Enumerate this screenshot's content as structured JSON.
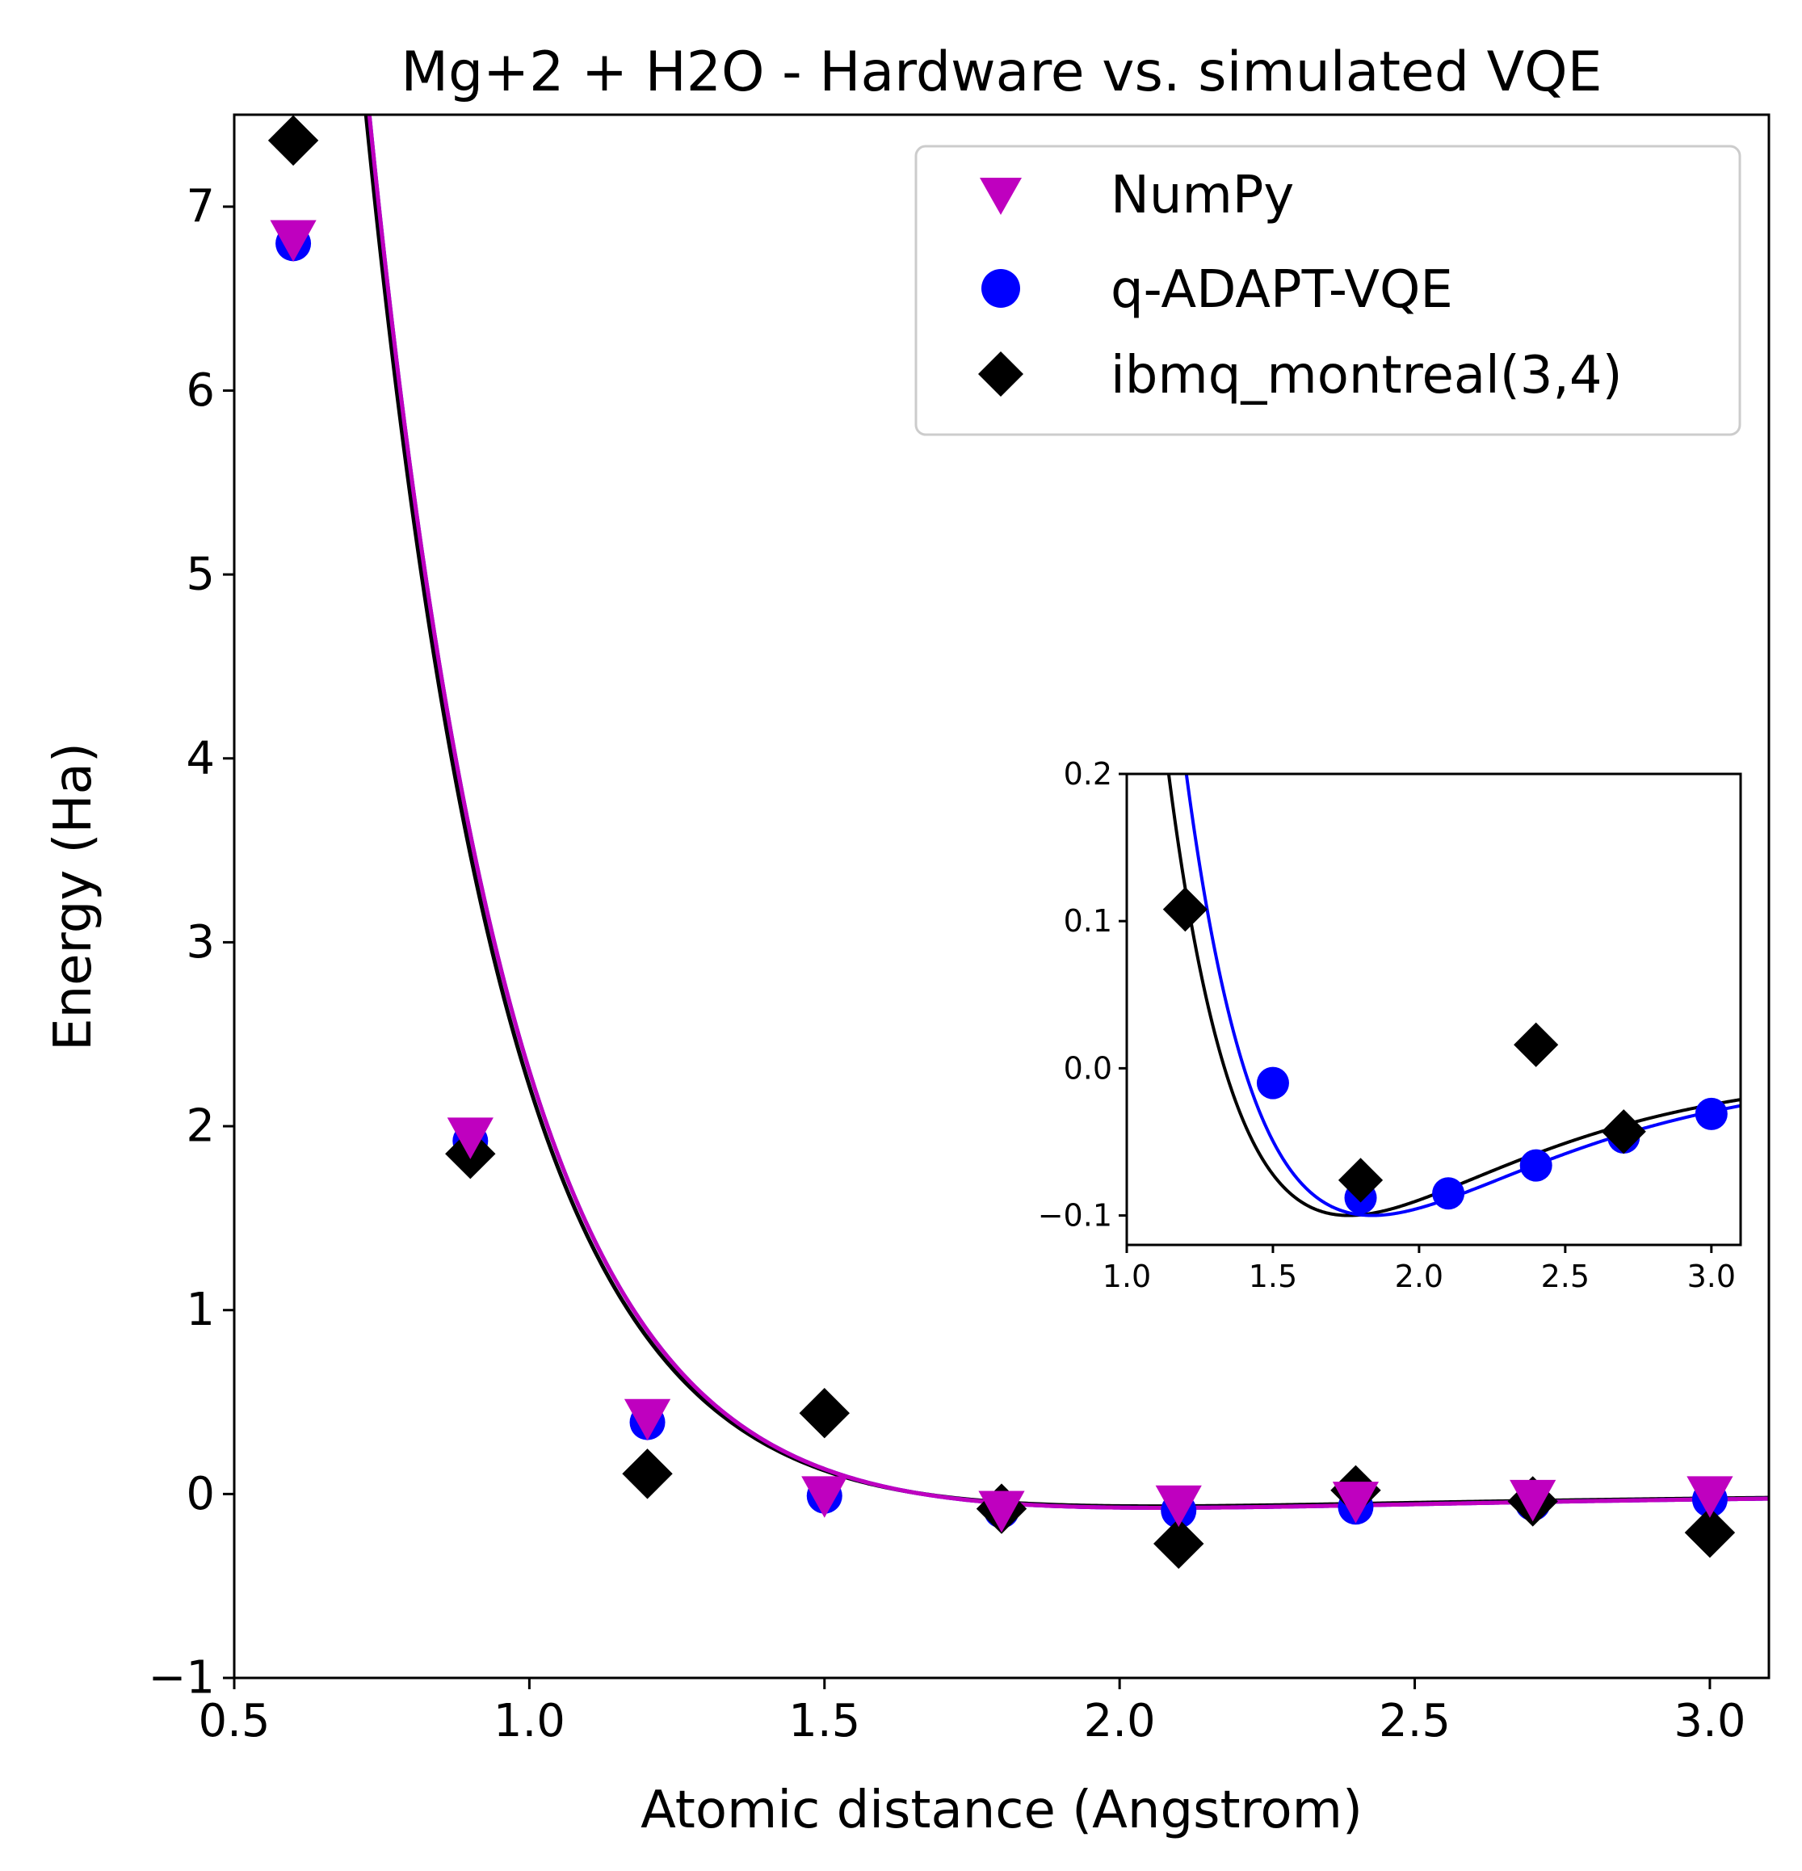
{
  "chart_data": [
    {
      "type": "line",
      "title": "Mg+2 + H2O - Hardware vs. simulated VQE",
      "xlabel": "Atomic distance (Angstrom)",
      "ylabel": "Energy (Ha)",
      "xlim": [
        0.5,
        3.1
      ],
      "ylim": [
        -1.0,
        7.5
      ],
      "xticks": [
        "0.5",
        "1.0",
        "1.5",
        "2.0",
        "2.5",
        "3.0"
      ],
      "yticks": [
        "−1",
        "0",
        "1",
        "2",
        "3",
        "4",
        "5",
        "6",
        "7"
      ],
      "legend_position": "top-right",
      "series": [
        {
          "name": "NumPy",
          "marker": "triangle-down",
          "color": "#bf00bf",
          "x": [
            0.6,
            0.9,
            1.2,
            1.5,
            1.8,
            2.1,
            2.4,
            2.7,
            3.0
          ],
          "y": [
            6.82,
            1.94,
            0.41,
            -0.01,
            -0.09,
            -0.06,
            -0.04,
            -0.03,
            -0.01
          ]
        },
        {
          "name": "q-ADAPT-VQE",
          "marker": "circle",
          "color": "#0000ff",
          "x": [
            0.6,
            0.9,
            1.2,
            1.5,
            1.8,
            2.1,
            2.4,
            2.7,
            3.0
          ],
          "y": [
            6.8,
            1.92,
            0.39,
            -0.01,
            -0.09,
            -0.09,
            -0.07,
            -0.05,
            -0.03
          ]
        },
        {
          "name": "ibmq_montreal(3,4)",
          "marker": "diamond",
          "color": "#000000",
          "x": [
            0.6,
            0.9,
            1.2,
            1.5,
            1.8,
            2.1,
            2.4,
            2.7,
            3.0
          ],
          "y": [
            7.36,
            1.85,
            0.11,
            0.44,
            -0.08,
            -0.27,
            0.02,
            -0.04,
            -0.21
          ]
        }
      ]
    },
    {
      "type": "line",
      "title": "",
      "xlabel": "",
      "ylabel": "",
      "xlim": [
        1.0,
        3.1
      ],
      "ylim": [
        -0.12,
        0.2
      ],
      "xticks": [
        "1.0",
        "1.5",
        "2.0",
        "2.5",
        "3.0"
      ],
      "yticks": [
        "−0.1",
        "0.0",
        "0.1",
        "0.2"
      ],
      "series": [
        {
          "marker": "circle",
          "color": "#0000ff",
          "x": [
            1.5,
            1.8,
            2.1,
            2.4,
            2.7,
            3.0
          ],
          "y": [
            -0.01,
            -0.088,
            -0.085,
            -0.066,
            -0.047,
            -0.031
          ]
        },
        {
          "marker": "diamond",
          "color": "#000000",
          "x": [
            1.2,
            1.8,
            2.4,
            2.7
          ],
          "y": [
            0.108,
            -0.076,
            0.016,
            -0.043
          ]
        }
      ]
    }
  ]
}
